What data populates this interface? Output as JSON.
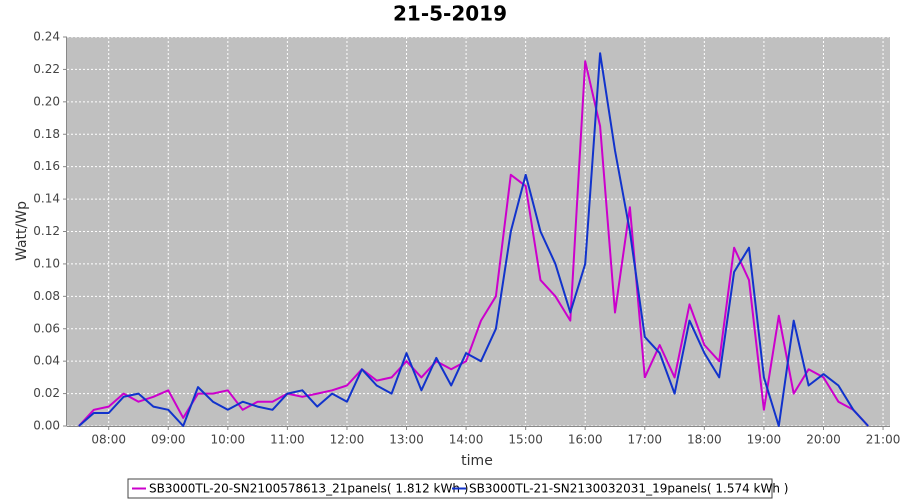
{
  "chart_data": {
    "type": "line",
    "title": "21-5-2019",
    "x_label": "time",
    "y_label": "Watt/Wp",
    "xlim": [
      "07:18",
      "21:07"
    ],
    "xticks": [
      "08:00",
      "09:00",
      "10:00",
      "11:00",
      "12:00",
      "13:00",
      "14:00",
      "15:00",
      "16:00",
      "17:00",
      "18:00",
      "19:00",
      "20:00",
      "21:00"
    ],
    "ylim": [
      0,
      0.24
    ],
    "yticks": [
      {
        "value": 0,
        "label": "0.00"
      },
      0.02,
      0.04,
      0.06,
      0.08,
      {
        "value": 0.1,
        "label": "0.10"
      },
      0.12,
      0.14,
      0.16,
      0.18,
      {
        "value": 0.2,
        "label": "0.20"
      },
      0.22,
      0.24
    ],
    "grid": true,
    "legend": "bottom",
    "x": [
      "07:30",
      "07:45",
      "08:00",
      "08:15",
      "08:30",
      "08:45",
      "09:00",
      "09:15",
      "09:30",
      "09:45",
      "10:00",
      "10:15",
      "10:30",
      "10:45",
      "11:00",
      "11:15",
      "11:30",
      "11:45",
      "12:00",
      "12:15",
      "12:30",
      "12:45",
      "13:00",
      "13:15",
      "13:30",
      "13:45",
      "14:00",
      "14:15",
      "14:30",
      "14:45",
      "15:00",
      "15:15",
      "15:30",
      "15:45",
      "16:00",
      "16:15",
      "16:30",
      "16:45",
      "17:00",
      "17:15",
      "17:30",
      "17:45",
      "18:00",
      "18:15",
      "18:30",
      "18:45",
      "19:00",
      "19:15",
      "19:30",
      "19:45",
      "20:00",
      "20:15",
      "20:30",
      "20:45"
    ],
    "series": [
      {
        "name": "SB3000TL-20-SN2100578613_21panels( 1.812 kWh )",
        "color": "#cc00cc",
        "values": [
          0.0,
          0.01,
          0.012,
          0.02,
          0.015,
          0.018,
          0.022,
          0.005,
          0.02,
          0.02,
          0.022,
          0.01,
          0.015,
          0.015,
          0.02,
          0.018,
          0.02,
          0.022,
          0.025,
          0.035,
          0.028,
          0.03,
          0.04,
          0.03,
          0.04,
          0.035,
          0.04,
          0.065,
          0.08,
          0.155,
          0.148,
          0.09,
          0.08,
          0.065,
          0.225,
          0.185,
          0.07,
          0.135,
          0.03,
          0.05,
          0.03,
          0.075,
          0.05,
          0.04,
          0.11,
          0.09,
          0.01,
          0.068,
          0.02,
          0.035,
          0.03,
          0.015,
          0.01,
          0.0
        ]
      },
      {
        "name": "SB3000TL-21-SN2130032031_19panels( 1.574 kWh )",
        "color": "#1133cc",
        "values": [
          0.0,
          0.008,
          0.008,
          0.018,
          0.02,
          0.012,
          0.01,
          0.0,
          0.024,
          0.015,
          0.01,
          0.015,
          0.012,
          0.01,
          0.02,
          0.022,
          0.012,
          0.02,
          0.015,
          0.035,
          0.025,
          0.02,
          0.045,
          0.022,
          0.042,
          0.025,
          0.045,
          0.04,
          0.06,
          0.12,
          0.155,
          0.12,
          0.1,
          0.07,
          0.1,
          0.23,
          0.17,
          0.12,
          0.055,
          0.045,
          0.02,
          0.065,
          0.045,
          0.03,
          0.095,
          0.11,
          0.03,
          0.0,
          0.065,
          0.025,
          0.032,
          0.025,
          0.01,
          0.0
        ]
      }
    ]
  }
}
